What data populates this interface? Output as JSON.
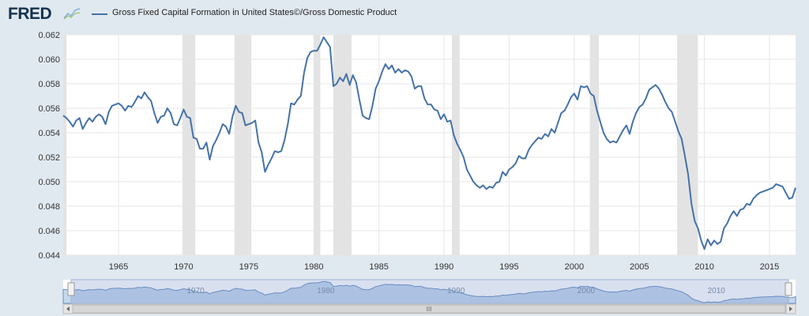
{
  "header": {
    "logo_text": "FRED",
    "logo_icon": "trend-line-icon"
  },
  "chart_data": {
    "type": "line",
    "title": "",
    "xlabel": "",
    "ylabel": "",
    "xlim": [
      1960.75,
      2017.0
    ],
    "ylim": [
      0.044,
      0.062
    ],
    "x_ticks": [
      "1965",
      "1970",
      "1975",
      "1980",
      "1985",
      "1990",
      "1995",
      "2000",
      "2005",
      "2010",
      "2015"
    ],
    "y_ticks": [
      "0.044",
      "0.046",
      "0.048",
      "0.050",
      "0.052",
      "0.054",
      "0.056",
      "0.058",
      "0.060",
      "0.062"
    ],
    "grid": true,
    "legend_placement": "top-left",
    "colors": {
      "line": "#4572a7",
      "recession": "#e3e3e3",
      "navigator_fill": "#c5d7ec"
    },
    "recessions": [
      [
        1960.25,
        1961.0
      ],
      [
        1969.9,
        1970.9
      ],
      [
        1973.9,
        1975.2
      ],
      [
        1980.0,
        1980.5
      ],
      [
        1981.5,
        1982.9
      ],
      [
        1990.6,
        1991.2
      ],
      [
        2001.2,
        2001.9
      ],
      [
        2007.9,
        2009.5
      ]
    ],
    "series": [
      {
        "name": "Gross Fixed Capital Formation in United States©/Gross Domestic Product",
        "points": [
          [
            1960.75,
            0.0554
          ],
          [
            1961.0,
            0.0552
          ],
          [
            1961.25,
            0.0549
          ],
          [
            1961.5,
            0.0545
          ],
          [
            1961.75,
            0.055
          ],
          [
            1962.0,
            0.0552
          ],
          [
            1962.25,
            0.0543
          ],
          [
            1962.5,
            0.0548
          ],
          [
            1962.75,
            0.0552
          ],
          [
            1963.0,
            0.0549
          ],
          [
            1963.25,
            0.0553
          ],
          [
            1963.5,
            0.0555
          ],
          [
            1963.75,
            0.0553
          ],
          [
            1964.0,
            0.0547
          ],
          [
            1964.25,
            0.0557
          ],
          [
            1964.5,
            0.0562
          ],
          [
            1964.75,
            0.0563
          ],
          [
            1965.0,
            0.0564
          ],
          [
            1965.25,
            0.0562
          ],
          [
            1965.5,
            0.0558
          ],
          [
            1965.75,
            0.0562
          ],
          [
            1966.0,
            0.0561
          ],
          [
            1966.25,
            0.0565
          ],
          [
            1966.5,
            0.057
          ],
          [
            1966.75,
            0.0568
          ],
          [
            1967.0,
            0.0573
          ],
          [
            1967.25,
            0.0569
          ],
          [
            1967.5,
            0.0566
          ],
          [
            1967.75,
            0.0556
          ],
          [
            1968.0,
            0.0548
          ],
          [
            1968.25,
            0.0553
          ],
          [
            1968.5,
            0.0554
          ],
          [
            1968.75,
            0.056
          ],
          [
            1969.0,
            0.0556
          ],
          [
            1969.25,
            0.0547
          ],
          [
            1969.5,
            0.0546
          ],
          [
            1969.75,
            0.0552
          ],
          [
            1970.0,
            0.0559
          ],
          [
            1970.25,
            0.0553
          ],
          [
            1970.5,
            0.0552
          ],
          [
            1970.75,
            0.0536
          ],
          [
            1971.0,
            0.0535
          ],
          [
            1971.25,
            0.0527
          ],
          [
            1971.5,
            0.0527
          ],
          [
            1971.75,
            0.0532
          ],
          [
            1972.0,
            0.0518
          ],
          [
            1972.25,
            0.0529
          ],
          [
            1972.5,
            0.0534
          ],
          [
            1972.75,
            0.054
          ],
          [
            1973.0,
            0.0547
          ],
          [
            1973.25,
            0.0545
          ],
          [
            1973.5,
            0.0539
          ],
          [
            1973.75,
            0.0553
          ],
          [
            1974.0,
            0.0562
          ],
          [
            1974.25,
            0.0557
          ],
          [
            1974.5,
            0.0556
          ],
          [
            1974.75,
            0.0546
          ],
          [
            1975.0,
            0.0547
          ],
          [
            1975.25,
            0.0548
          ],
          [
            1975.5,
            0.055
          ],
          [
            1975.75,
            0.0532
          ],
          [
            1976.0,
            0.0524
          ],
          [
            1976.25,
            0.0508
          ],
          [
            1976.5,
            0.0514
          ],
          [
            1976.75,
            0.0519
          ],
          [
            1977.0,
            0.0525
          ],
          [
            1977.25,
            0.0524
          ],
          [
            1977.5,
            0.0525
          ],
          [
            1977.75,
            0.0534
          ],
          [
            1978.0,
            0.0547
          ],
          [
            1978.25,
            0.0564
          ],
          [
            1978.5,
            0.0563
          ],
          [
            1978.75,
            0.0567
          ],
          [
            1979.0,
            0.057
          ],
          [
            1979.25,
            0.0589
          ],
          [
            1979.5,
            0.0601
          ],
          [
            1979.75,
            0.0606
          ],
          [
            1980.0,
            0.0607
          ],
          [
            1980.25,
            0.0607
          ],
          [
            1980.5,
            0.0612
          ],
          [
            1980.75,
            0.0618
          ],
          [
            1981.0,
            0.0614
          ],
          [
            1981.25,
            0.061
          ],
          [
            1981.5,
            0.0578
          ],
          [
            1981.75,
            0.058
          ],
          [
            1982.0,
            0.0585
          ],
          [
            1982.25,
            0.0582
          ],
          [
            1982.5,
            0.0588
          ],
          [
            1982.75,
            0.0579
          ],
          [
            1983.0,
            0.0587
          ],
          [
            1983.25,
            0.0581
          ],
          [
            1983.5,
            0.0567
          ],
          [
            1983.75,
            0.0554
          ],
          [
            1984.0,
            0.0552
          ],
          [
            1984.25,
            0.0551
          ],
          [
            1984.5,
            0.0562
          ],
          [
            1984.75,
            0.0576
          ],
          [
            1985.0,
            0.0582
          ],
          [
            1985.25,
            0.059
          ],
          [
            1985.5,
            0.0596
          ],
          [
            1985.75,
            0.0592
          ],
          [
            1986.0,
            0.0595
          ],
          [
            1986.25,
            0.0589
          ],
          [
            1986.5,
            0.0592
          ],
          [
            1986.75,
            0.0589
          ],
          [
            1987.0,
            0.0591
          ],
          [
            1987.25,
            0.059
          ],
          [
            1987.5,
            0.0586
          ],
          [
            1987.75,
            0.0576
          ],
          [
            1988.0,
            0.0578
          ],
          [
            1988.25,
            0.0578
          ],
          [
            1988.5,
            0.0568
          ],
          [
            1988.75,
            0.0563
          ],
          [
            1989.0,
            0.0563
          ],
          [
            1989.25,
            0.0559
          ],
          [
            1989.5,
            0.0558
          ],
          [
            1989.75,
            0.0551
          ],
          [
            1990.0,
            0.0555
          ],
          [
            1990.25,
            0.0549
          ],
          [
            1990.5,
            0.055
          ],
          [
            1990.75,
            0.0538
          ],
          [
            1991.0,
            0.0531
          ],
          [
            1991.25,
            0.0526
          ],
          [
            1991.5,
            0.052
          ],
          [
            1991.75,
            0.051
          ],
          [
            1992.0,
            0.0505
          ],
          [
            1992.25,
            0.05
          ],
          [
            1992.5,
            0.0497
          ],
          [
            1992.75,
            0.0495
          ],
          [
            1993.0,
            0.0497
          ],
          [
            1993.25,
            0.0494
          ],
          [
            1993.5,
            0.0496
          ],
          [
            1993.75,
            0.0495
          ],
          [
            1994.0,
            0.0499
          ],
          [
            1994.25,
            0.05
          ],
          [
            1994.5,
            0.0508
          ],
          [
            1994.75,
            0.0505
          ],
          [
            1995.0,
            0.051
          ],
          [
            1995.25,
            0.0512
          ],
          [
            1995.5,
            0.0515
          ],
          [
            1995.75,
            0.0521
          ],
          [
            1996.0,
            0.0519
          ],
          [
            1996.25,
            0.0519
          ],
          [
            1996.5,
            0.0526
          ],
          [
            1996.75,
            0.053
          ],
          [
            1997.0,
            0.0533
          ],
          [
            1997.25,
            0.0536
          ],
          [
            1997.5,
            0.0535
          ],
          [
            1997.75,
            0.0539
          ],
          [
            1998.0,
            0.0537
          ],
          [
            1998.25,
            0.0543
          ],
          [
            1998.5,
            0.054
          ],
          [
            1998.75,
            0.0548
          ],
          [
            1999.0,
            0.0556
          ],
          [
            1999.25,
            0.0558
          ],
          [
            1999.5,
            0.0563
          ],
          [
            1999.75,
            0.0569
          ],
          [
            2000.0,
            0.0572
          ],
          [
            2000.25,
            0.0567
          ],
          [
            2000.5,
            0.0578
          ],
          [
            2000.75,
            0.0577
          ],
          [
            2001.0,
            0.0578
          ],
          [
            2001.25,
            0.0572
          ],
          [
            2001.5,
            0.057
          ],
          [
            2001.75,
            0.0558
          ],
          [
            2002.0,
            0.0549
          ],
          [
            2002.25,
            0.054
          ],
          [
            2002.5,
            0.0535
          ],
          [
            2002.75,
            0.0532
          ],
          [
            2003.0,
            0.0533
          ],
          [
            2003.25,
            0.0532
          ],
          [
            2003.5,
            0.0537
          ],
          [
            2003.75,
            0.0542
          ],
          [
            2004.0,
            0.0546
          ],
          [
            2004.25,
            0.0539
          ],
          [
            2004.5,
            0.0549
          ],
          [
            2004.75,
            0.0556
          ],
          [
            2005.0,
            0.0561
          ],
          [
            2005.25,
            0.0563
          ],
          [
            2005.5,
            0.0568
          ],
          [
            2005.75,
            0.0575
          ],
          [
            2006.0,
            0.0577
          ],
          [
            2006.25,
            0.0579
          ],
          [
            2006.5,
            0.0576
          ],
          [
            2006.75,
            0.0571
          ],
          [
            2007.0,
            0.0565
          ],
          [
            2007.25,
            0.056
          ],
          [
            2007.5,
            0.0557
          ],
          [
            2007.75,
            0.0549
          ],
          [
            2008.0,
            0.0541
          ],
          [
            2008.25,
            0.0535
          ],
          [
            2008.5,
            0.0521
          ],
          [
            2008.75,
            0.0506
          ],
          [
            2009.0,
            0.0482
          ],
          [
            2009.25,
            0.0468
          ],
          [
            2009.5,
            0.0462
          ],
          [
            2009.75,
            0.0452
          ],
          [
            2010.0,
            0.0445
          ],
          [
            2010.25,
            0.0453
          ],
          [
            2010.5,
            0.0448
          ],
          [
            2010.75,
            0.0452
          ],
          [
            2011.0,
            0.0449
          ],
          [
            2011.25,
            0.0451
          ],
          [
            2011.5,
            0.0462
          ],
          [
            2011.75,
            0.0466
          ],
          [
            2012.0,
            0.0472
          ],
          [
            2012.25,
            0.0476
          ],
          [
            2012.5,
            0.0472
          ],
          [
            2012.75,
            0.0477
          ],
          [
            2013.0,
            0.0478
          ],
          [
            2013.25,
            0.0482
          ],
          [
            2013.5,
            0.0481
          ],
          [
            2013.75,
            0.0486
          ],
          [
            2014.0,
            0.0489
          ],
          [
            2014.25,
            0.0491
          ],
          [
            2014.5,
            0.0492
          ],
          [
            2014.75,
            0.0493
          ],
          [
            2015.0,
            0.0494
          ],
          [
            2015.25,
            0.0495
          ],
          [
            2015.5,
            0.0498
          ],
          [
            2015.75,
            0.0497
          ],
          [
            2016.0,
            0.0496
          ],
          [
            2016.25,
            0.0491
          ],
          [
            2016.5,
            0.0486
          ],
          [
            2016.75,
            0.0487
          ],
          [
            2017.0,
            0.0495
          ]
        ]
      }
    ],
    "navigator": {
      "x_ticks": [
        "1970",
        "1980",
        "1990",
        "2000",
        "2010"
      ],
      "scrollbar_grip": "III"
    }
  }
}
